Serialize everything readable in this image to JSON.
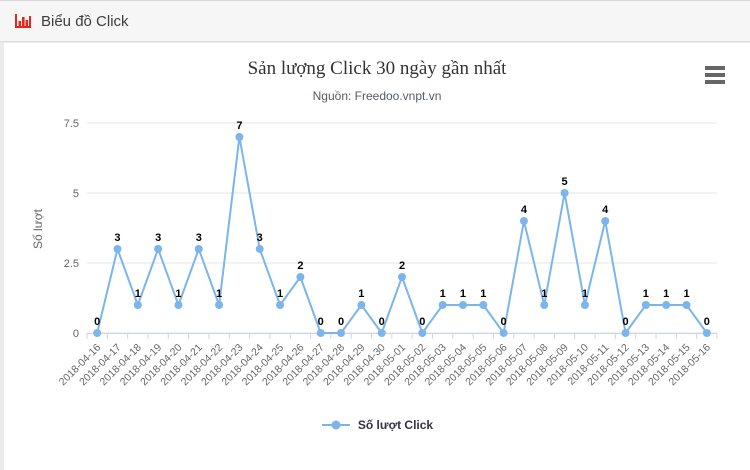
{
  "header": {
    "title": "Biểu đồ Click",
    "icon": "bar-chart-icon"
  },
  "menu": {
    "icon": "hamburger-icon"
  },
  "chart_data": {
    "type": "line",
    "title": "Sản lượng Click 30 ngày gần nhất",
    "subtitle": "Nguồn: Freedoo.vnpt.vn",
    "xlabel": "",
    "ylabel": "Số lượt",
    "ylim": [
      0,
      7.5
    ],
    "yticks": [
      0,
      2.5,
      5,
      7.5
    ],
    "grid": true,
    "legend_position": "bottom-center",
    "categories": [
      "2018-04-16",
      "2018-04-17",
      "2018-04-18",
      "2018-04-19",
      "2018-04-20",
      "2018-04-21",
      "2018-04-22",
      "2018-04-23",
      "2018-04-24",
      "2018-04-25",
      "2018-04-26",
      "2018-04-27",
      "2018-04-28",
      "2018-04-29",
      "2018-04-30",
      "2018-05-01",
      "2018-05-02",
      "2018-05-03",
      "2018-05-04",
      "2018-05-05",
      "2018-05-06",
      "2018-05-07",
      "2018-05-08",
      "2018-05-09",
      "2018-05-10",
      "2018-05-11",
      "2018-05-12",
      "2018-05-13",
      "2018-05-14",
      "2018-05-15",
      "2018-05-16"
    ],
    "series": [
      {
        "name": "Số lượt Click",
        "color": "#7cb5ec",
        "marker": "circle",
        "values": [
          0,
          3,
          1,
          3,
          1,
          3,
          1,
          7,
          3,
          1,
          2,
          0,
          0,
          1,
          0,
          2,
          0,
          1,
          1,
          1,
          0,
          4,
          1,
          5,
          1,
          4,
          0,
          1,
          1,
          1,
          0
        ]
      }
    ]
  },
  "colors": {
    "series": "#7cb5ec",
    "header_icon": "#e02a21",
    "grid_line": "#e6e6e6",
    "axis_line": "#ccd6eb",
    "axis_text": "#666666",
    "data_label": "#000000"
  }
}
